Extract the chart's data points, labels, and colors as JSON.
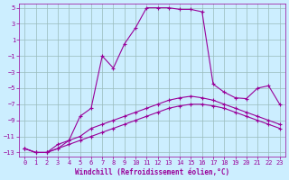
{
  "xlabel": "Windchill (Refroidissement éolien,°C)",
  "bg_color": "#cceeff",
  "line_color": "#990099",
  "grid_color": "#99bbbb",
  "xlim": [
    -0.5,
    23.5
  ],
  "ylim": [
    -13.5,
    5.5
  ],
  "xticks": [
    0,
    1,
    2,
    3,
    4,
    5,
    6,
    7,
    8,
    9,
    10,
    11,
    12,
    13,
    14,
    15,
    16,
    17,
    18,
    19,
    20,
    21,
    22,
    23
  ],
  "yticks": [
    -13,
    -11,
    -9,
    -7,
    -5,
    -3,
    -1,
    1,
    3,
    5
  ],
  "series1_x": [
    0,
    1,
    2,
    3,
    4,
    5,
    6,
    7,
    8,
    9,
    10,
    11,
    12,
    13,
    14,
    15,
    16,
    17,
    18,
    19,
    20,
    21,
    22,
    23
  ],
  "series1_y": [
    -12.5,
    -13,
    -13,
    -12.5,
    -12,
    -11.5,
    -11,
    -10.5,
    -10,
    -9.5,
    -9,
    -8.5,
    -8,
    -7.5,
    -7.2,
    -7,
    -7,
    -7.2,
    -7.5,
    -8,
    -8.5,
    -9,
    -9.5,
    -10
  ],
  "series2_x": [
    0,
    1,
    2,
    3,
    4,
    5,
    6,
    7,
    8,
    9,
    10,
    11,
    12,
    13,
    14,
    15,
    16,
    17,
    18,
    19,
    20,
    21,
    22,
    23
  ],
  "series2_y": [
    -12.5,
    -13,
    -13,
    -12,
    -11.5,
    -11,
    -10,
    -9.5,
    -9,
    -8.5,
    -8,
    -7.5,
    -7,
    -6.5,
    -6.2,
    -6,
    -6.2,
    -6.5,
    -7,
    -7.5,
    -8,
    -8.5,
    -9,
    -9.5
  ],
  "series3_x": [
    0,
    1,
    2,
    3,
    4,
    5,
    6,
    7,
    8,
    9,
    10,
    11,
    12,
    13,
    14,
    15,
    16,
    17,
    18,
    19,
    20,
    21,
    22,
    23
  ],
  "series3_y": [
    -12.5,
    -13,
    -13,
    -12.5,
    -11.5,
    -8.5,
    -7.5,
    -1.0,
    -2.5,
    0.5,
    2.5,
    5.0,
    5.0,
    5.0,
    4.8,
    4.8,
    4.5,
    -4.5,
    -5.5,
    -6.2,
    -6.3,
    -5.0,
    -4.7,
    -7.0
  ]
}
